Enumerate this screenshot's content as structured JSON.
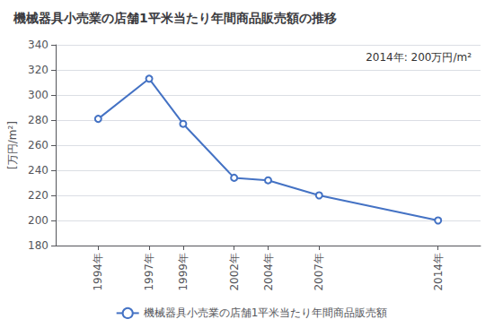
{
  "chart_data": {
    "type": "line",
    "title": "機械器具小売業の店舗1平米当たり年間商品販売額の推移",
    "y_label": "[万円/m²]",
    "annotation": "2014年: 200万円/m²",
    "x": [
      1994,
      1997,
      1999,
      2002,
      2004,
      2007,
      2014
    ],
    "series": [
      {
        "name": "機械器具小売業の店舗1平米当たり年間商品販売額",
        "color": "#4472C4",
        "marker": "circle",
        "values": [
          281,
          313,
          277,
          234,
          232,
          220,
          200
        ]
      }
    ],
    "xlim": [
      1991.5,
      2016.5
    ],
    "xticks": [
      {
        "value": 1994,
        "label": "1994年"
      },
      {
        "value": 1997,
        "label": "1997年"
      },
      {
        "value": 1999,
        "label": "1999年"
      },
      {
        "value": 2002,
        "label": "2002年"
      },
      {
        "value": 2004,
        "label": "2004年"
      },
      {
        "value": 2007,
        "label": "2007年"
      },
      {
        "value": 2014,
        "label": "2014年"
      }
    ],
    "ylim": [
      180,
      340
    ],
    "yticks": [
      180,
      200,
      220,
      240,
      260,
      280,
      300,
      320,
      340
    ],
    "grid": true,
    "legend": "bottom"
  }
}
